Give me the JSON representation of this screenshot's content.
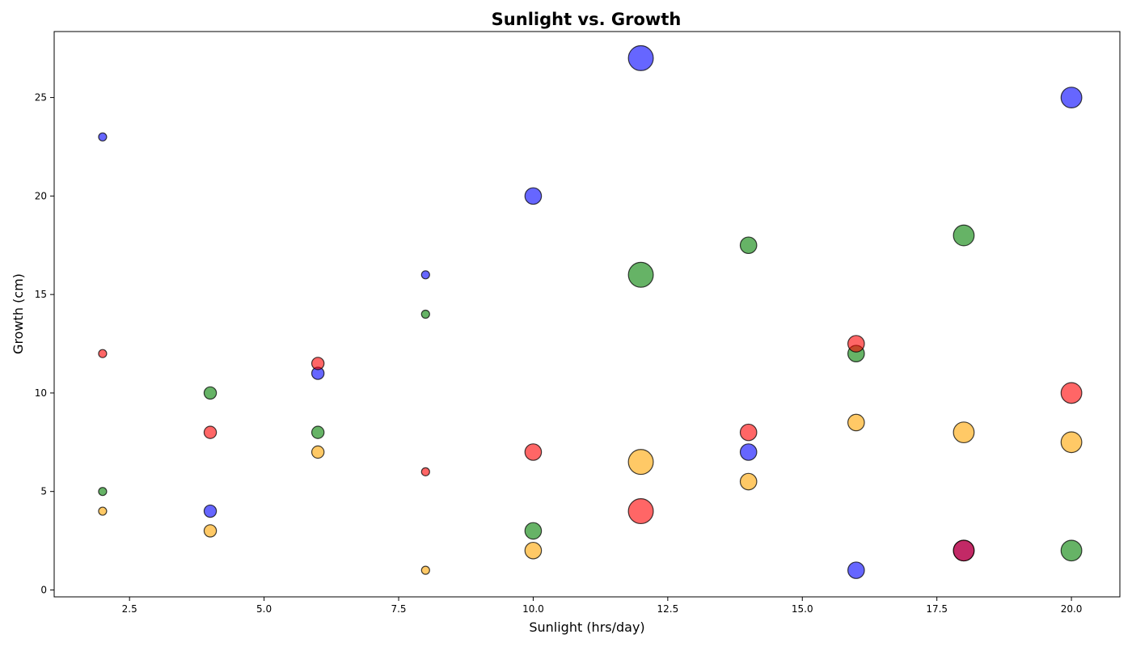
{
  "chart_data": {
    "type": "scatter",
    "title": "Sunlight vs. Growth",
    "xlabel": "Sunlight (hrs/day)",
    "ylabel": "Growth (cm)",
    "xlim": [
      1.1,
      20.9
    ],
    "ylim": [
      -0.35,
      28.35
    ],
    "xticks": [
      "2.5",
      "5.0",
      "7.5",
      "10.0",
      "12.5",
      "15.0",
      "17.5",
      "20.0"
    ],
    "yticks": [
      "0",
      "5",
      "10",
      "15",
      "20",
      "25"
    ],
    "grid": false,
    "marker_edge_color": "#000000",
    "marker_alpha": 0.6,
    "series": [
      {
        "color": "#0000ff",
        "points": [
          {
            "x": 2,
            "y": 23,
            "size": 1
          },
          {
            "x": 4,
            "y": 4,
            "size": 2
          },
          {
            "x": 6,
            "y": 11,
            "size": 2
          },
          {
            "x": 8,
            "y": 16,
            "size": 1
          },
          {
            "x": 10,
            "y": 20,
            "size": 3
          },
          {
            "x": 12,
            "y": 27,
            "size": 5
          },
          {
            "x": 14,
            "y": 7,
            "size": 3
          },
          {
            "x": 16,
            "y": 1,
            "size": 3
          },
          {
            "x": 18,
            "y": 2,
            "size": 4
          },
          {
            "x": 20,
            "y": 25,
            "size": 4
          }
        ]
      },
      {
        "color": "#008000",
        "points": [
          {
            "x": 2,
            "y": 5,
            "size": 1
          },
          {
            "x": 4,
            "y": 10,
            "size": 2
          },
          {
            "x": 6,
            "y": 8,
            "size": 2
          },
          {
            "x": 8,
            "y": 14,
            "size": 1
          },
          {
            "x": 10,
            "y": 3,
            "size": 3
          },
          {
            "x": 12,
            "y": 16,
            "size": 5
          },
          {
            "x": 14,
            "y": 17.5,
            "size": 3
          },
          {
            "x": 16,
            "y": 12,
            "size": 3
          },
          {
            "x": 18,
            "y": 18,
            "size": 4
          },
          {
            "x": 20,
            "y": 2,
            "size": 4
          }
        ]
      },
      {
        "color": "#ff0000",
        "points": [
          {
            "x": 2,
            "y": 12,
            "size": 1
          },
          {
            "x": 4,
            "y": 8,
            "size": 2
          },
          {
            "x": 6,
            "y": 11.5,
            "size": 2
          },
          {
            "x": 8,
            "y": 6,
            "size": 1
          },
          {
            "x": 10,
            "y": 7,
            "size": 3
          },
          {
            "x": 12,
            "y": 4,
            "size": 5
          },
          {
            "x": 14,
            "y": 8,
            "size": 3
          },
          {
            "x": 16,
            "y": 12.5,
            "size": 3
          },
          {
            "x": 18,
            "y": 2,
            "size": 4
          },
          {
            "x": 20,
            "y": 10,
            "size": 4
          }
        ]
      },
      {
        "color": "#ffa500",
        "points": [
          {
            "x": 2,
            "y": 4,
            "size": 1
          },
          {
            "x": 4,
            "y": 3,
            "size": 2
          },
          {
            "x": 6,
            "y": 7,
            "size": 2
          },
          {
            "x": 8,
            "y": 1,
            "size": 1
          },
          {
            "x": 10,
            "y": 2,
            "size": 3
          },
          {
            "x": 12,
            "y": 6.5,
            "size": 5
          },
          {
            "x": 14,
            "y": 5.5,
            "size": 3
          },
          {
            "x": 16,
            "y": 8.5,
            "size": 3
          },
          {
            "x": 18,
            "y": 8,
            "size": 4
          },
          {
            "x": 20,
            "y": 7.5,
            "size": 4
          }
        ]
      }
    ]
  }
}
